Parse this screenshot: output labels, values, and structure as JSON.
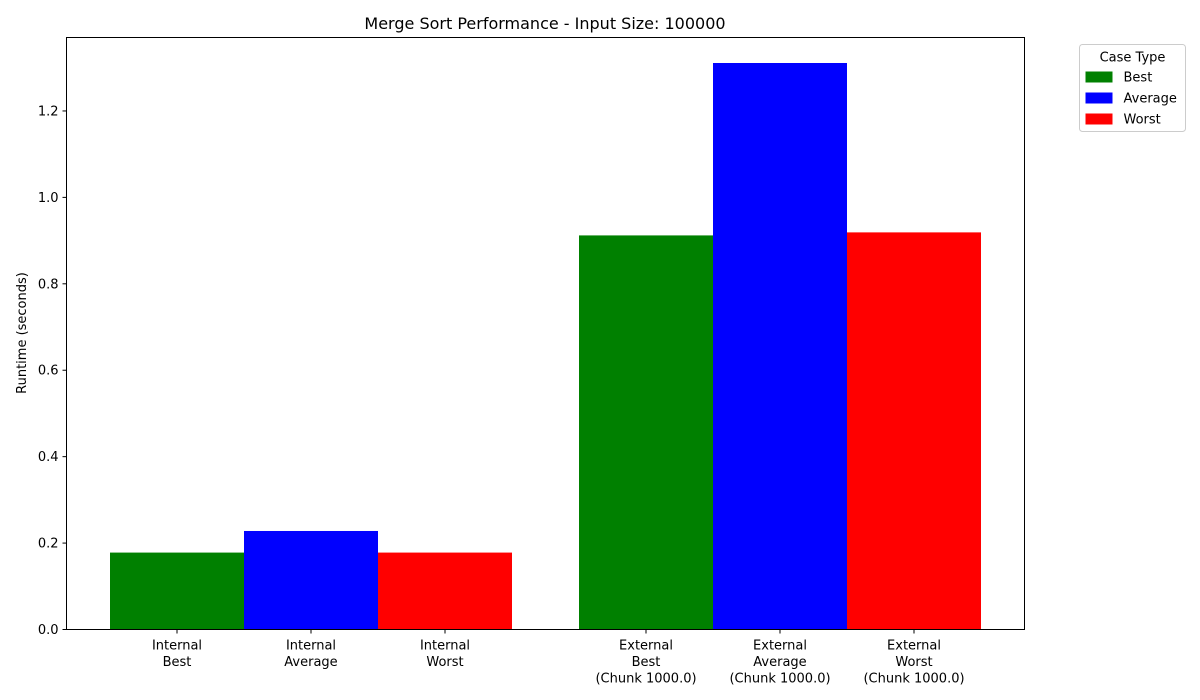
{
  "chart_data": {
    "type": "bar",
    "title": "Merge Sort Performance - Input Size: 100000",
    "xlabel": "",
    "ylabel": "Runtime (seconds)",
    "ylim": [
      0,
      1.37
    ],
    "yticks": [
      "0.0",
      "0.2",
      "0.4",
      "0.6",
      "0.8",
      "1.0",
      "1.2"
    ],
    "grid": false,
    "legend": {
      "title": "Case Type",
      "placement": "outside-top-right",
      "entries": [
        {
          "name": "Best",
          "color": "#008000"
        },
        {
          "name": "Average",
          "color": "#0000ff"
        },
        {
          "name": "Worst",
          "color": "#ff0000"
        }
      ]
    },
    "categories": [
      [
        "Internal",
        "Best"
      ],
      [
        "Internal",
        "Average"
      ],
      [
        "Internal",
        "Worst"
      ],
      [
        "External",
        "Best",
        "(Chunk 1000.0)"
      ],
      [
        "External",
        "Average",
        "(Chunk 1000.0)"
      ],
      [
        "External",
        "Worst",
        "(Chunk 1000.0)"
      ]
    ],
    "values": [
      0.178,
      0.228,
      0.178,
      0.912,
      1.311,
      0.919
    ],
    "bar_colors": [
      "#008000",
      "#0000ff",
      "#ff0000",
      "#008000",
      "#0000ff",
      "#ff0000"
    ]
  }
}
